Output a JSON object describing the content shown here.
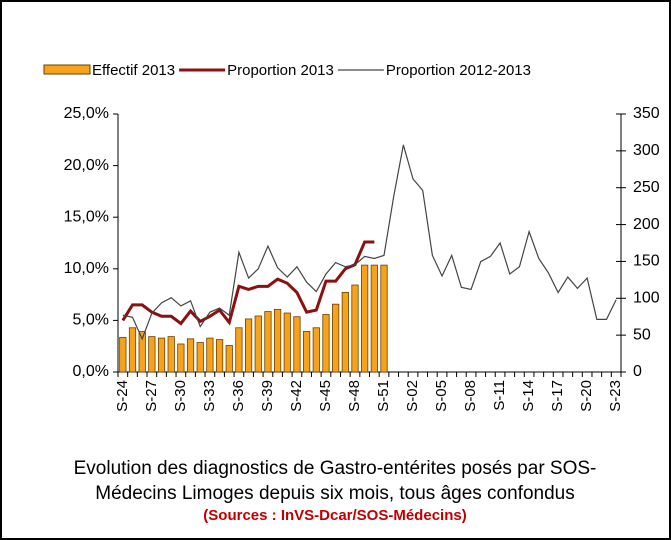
{
  "chart_data": {
    "type": "combo",
    "categories": [
      "S-24",
      null,
      null,
      "S-27",
      null,
      null,
      "S-30",
      null,
      null,
      "S-33",
      null,
      null,
      "S-36",
      null,
      null,
      "S-39",
      null,
      null,
      "S-42",
      null,
      null,
      "S-45",
      null,
      null,
      "S-48",
      null,
      null,
      "S-51",
      null,
      null,
      "S-02",
      null,
      null,
      "S-05",
      null,
      null,
      "S-08",
      null,
      null,
      "S-11",
      null,
      null,
      "S-14",
      null,
      null,
      "S-17",
      null,
      null,
      "S-20",
      null,
      null,
      "S-23"
    ],
    "series": [
      {
        "name": "Effectif 2013",
        "type": "bar",
        "axis": "y2",
        "color": "#f7a21b",
        "values": [
          47,
          60,
          55,
          48,
          46,
          48,
          38,
          45,
          40,
          46,
          44,
          36,
          60,
          72,
          76,
          82,
          85,
          80,
          75,
          55,
          60,
          78,
          92,
          108,
          118,
          145,
          145,
          145,
          null,
          null,
          null,
          null,
          null,
          null,
          null,
          null,
          null,
          null,
          null,
          null,
          null,
          null,
          null,
          null,
          null,
          null,
          null,
          null,
          null,
          null,
          null,
          null
        ]
      },
      {
        "name": "Proportion 2013",
        "type": "line",
        "axis": "y",
        "color": "#8b1010",
        "values": [
          5.0,
          6.5,
          6.5,
          5.8,
          5.4,
          5.4,
          4.7,
          5.9,
          4.9,
          5.4,
          6.0,
          4.8,
          8.3,
          8.0,
          8.3,
          8.3,
          9.0,
          8.6,
          7.7,
          5.8,
          6.0,
          8.8,
          8.8,
          10.0,
          10.4,
          12.6,
          12.6,
          null,
          null,
          null,
          null,
          null,
          null,
          null,
          null,
          null,
          null,
          null,
          null,
          null,
          null,
          null,
          null,
          null,
          null,
          null,
          null,
          null,
          null,
          null,
          null,
          null
        ]
      },
      {
        "name": "Proportion 2012-2013",
        "type": "line",
        "axis": "y",
        "color": "#444444",
        "values": [
          5.5,
          5.3,
          3.2,
          5.7,
          6.7,
          7.2,
          6.4,
          6.9,
          4.4,
          5.8,
          6.2,
          5.5,
          11.6,
          9.1,
          10.0,
          12.2,
          10.1,
          9.2,
          10.2,
          8.7,
          7.8,
          9.5,
          10.6,
          10.2,
          10.4,
          11.2,
          11.0,
          11.3,
          17.0,
          22.0,
          18.7,
          17.6,
          11.3,
          9.3,
          11.3,
          8.2,
          8.0,
          10.7,
          11.2,
          12.5,
          9.5,
          10.2,
          13.6,
          11.0,
          9.6,
          7.7,
          9.2,
          8.1,
          9.1,
          5.1,
          5.1,
          7.0
        ]
      }
    ],
    "ylim": [
      0,
      25
    ],
    "yticks": [
      {
        "value": 0,
        "label": "0,0%"
      },
      {
        "value": 5,
        "label": "5,0%"
      },
      {
        "value": 10,
        "label": "10,0%"
      },
      {
        "value": 15,
        "label": "15,0%"
      },
      {
        "value": 20,
        "label": "20,0%"
      },
      {
        "value": 25,
        "label": "25,0%"
      }
    ],
    "y2lim": [
      0,
      350
    ],
    "y2ticks": [
      0,
      50,
      100,
      150,
      200,
      250,
      300,
      350
    ],
    "caption_lines": [
      "Evolution des diagnostics de Gastro-entérites posés par SOS-",
      "Médecins Limoges depuis six mois, tous âges confondus"
    ],
    "source": "(Sources : InVS-Dcar/SOS-Médecins)"
  }
}
